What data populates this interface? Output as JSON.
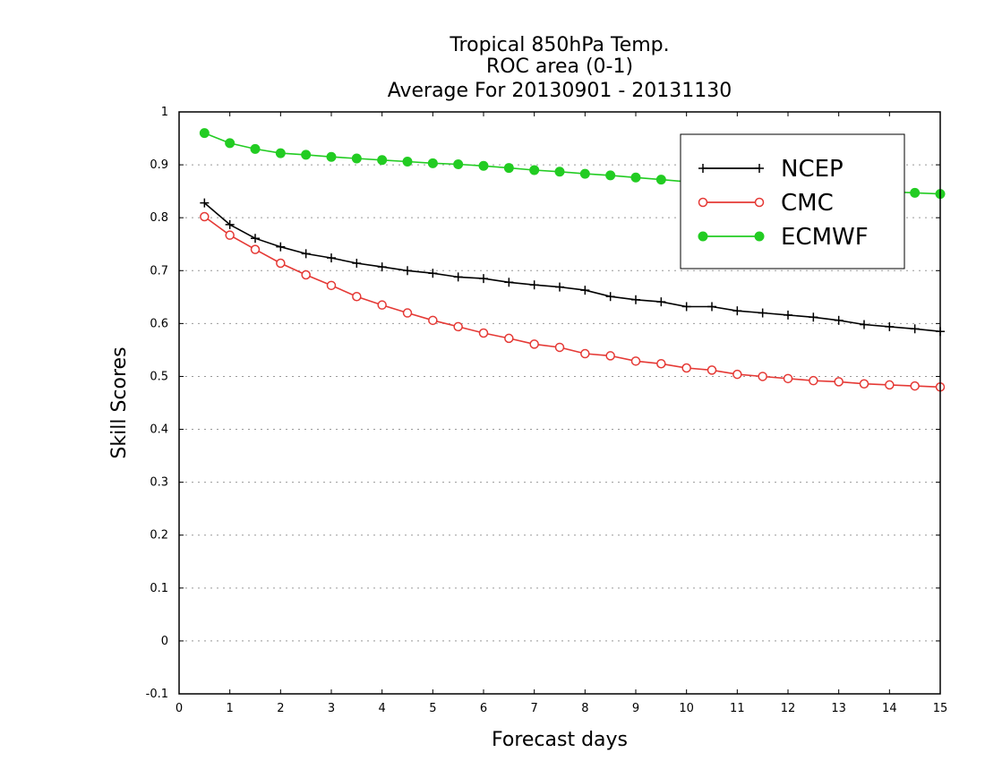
{
  "chart_data": {
    "type": "line",
    "title": [
      "Tropical 850hPa Temp.",
      "ROC area (0-1)",
      "Average For 20130901 - 20131130"
    ],
    "xlabel": "Forecast days",
    "ylabel": "Skill Scores",
    "xlim": [
      0,
      15
    ],
    "ylim": [
      -0.1,
      1
    ],
    "xticks": [
      "0",
      "1",
      "2",
      "3",
      "4",
      "5",
      "6",
      "7",
      "8",
      "9",
      "10",
      "11",
      "12",
      "13",
      "14",
      "15"
    ],
    "yticks": [
      "-0.1",
      "0",
      "0.1",
      "0.2",
      "0.3",
      "0.4",
      "0.5",
      "0.6",
      "0.7",
      "0.8",
      "0.9",
      "1"
    ],
    "grid": "horizontal-dotted",
    "legend_position": "top-right",
    "x": [
      0.5,
      1,
      1.5,
      2,
      2.5,
      3,
      3.5,
      4,
      4.5,
      5,
      5.5,
      6,
      6.5,
      7,
      7.5,
      8,
      8.5,
      9,
      9.5,
      10,
      10.5,
      11,
      11.5,
      12,
      12.5,
      13,
      13.5,
      14,
      14.5,
      15
    ],
    "series": [
      {
        "name": "NCEP",
        "color": "#000000",
        "marker": "plus",
        "values": [
          0.828,
          0.787,
          0.761,
          0.745,
          0.732,
          0.724,
          0.714,
          0.707,
          0.7,
          0.695,
          0.688,
          0.685,
          0.678,
          0.673,
          0.669,
          0.663,
          0.651,
          0.645,
          0.641,
          0.632,
          0.632,
          0.624,
          0.62,
          0.616,
          0.612,
          0.606,
          0.598,
          0.594,
          0.59,
          0.585
        ]
      },
      {
        "name": "CMC",
        "color": "#e53935",
        "marker": "open-circle",
        "values": [
          0.802,
          0.767,
          0.74,
          0.714,
          0.692,
          0.672,
          0.651,
          0.635,
          0.62,
          0.606,
          0.594,
          0.582,
          0.572,
          0.561,
          0.555,
          0.543,
          0.539,
          0.529,
          0.524,
          0.516,
          0.512,
          0.504,
          0.5,
          0.496,
          0.492,
          0.49,
          0.486,
          0.484,
          0.482,
          0.48
        ]
      },
      {
        "name": "ECMWF",
        "color": "#22cc22",
        "marker": "filled-circle",
        "values": [
          0.96,
          0.941,
          0.93,
          0.922,
          0.919,
          0.915,
          0.912,
          0.909,
          0.906,
          0.903,
          0.901,
          0.898,
          0.894,
          0.89,
          0.887,
          0.883,
          0.88,
          0.876,
          0.872,
          0.868,
          0.865,
          0.862,
          0.86,
          0.858,
          0.855,
          0.853,
          0.851,
          0.849,
          0.847,
          0.845
        ]
      }
    ]
  }
}
